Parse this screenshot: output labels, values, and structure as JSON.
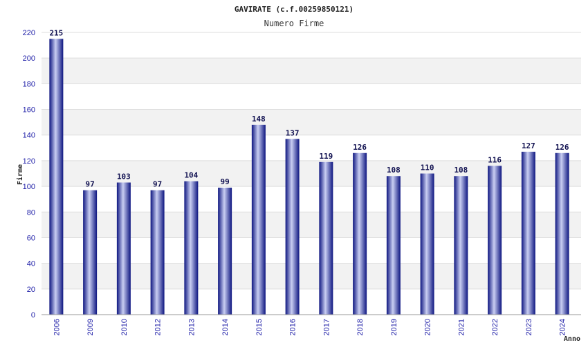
{
  "chart_data": {
    "type": "bar",
    "title": "GAVIRATE (c.f.00259850121)",
    "subtitle": "Numero Firme",
    "xlabel": "Anno",
    "ylabel": "Firme",
    "ylim": [
      0,
      220
    ],
    "yticks": [
      0,
      20,
      40,
      60,
      80,
      100,
      120,
      140,
      160,
      180,
      200,
      220
    ],
    "categories": [
      "2006",
      "2009",
      "2010",
      "2012",
      "2013",
      "2014",
      "2015",
      "2016",
      "2017",
      "2018",
      "2019",
      "2020",
      "2021",
      "2022",
      "2023",
      "2024"
    ],
    "values": [
      215,
      97,
      103,
      97,
      104,
      99,
      148,
      137,
      119,
      126,
      108,
      110,
      108,
      116,
      127,
      126
    ],
    "grid": true,
    "legend": "none"
  },
  "colors": {
    "bar_dark": "#101a8c",
    "bar_light": "#c8cdf0",
    "band": "#f2f2f2",
    "grid": "#dddddd",
    "tick_text": "#1a1aa6"
  }
}
